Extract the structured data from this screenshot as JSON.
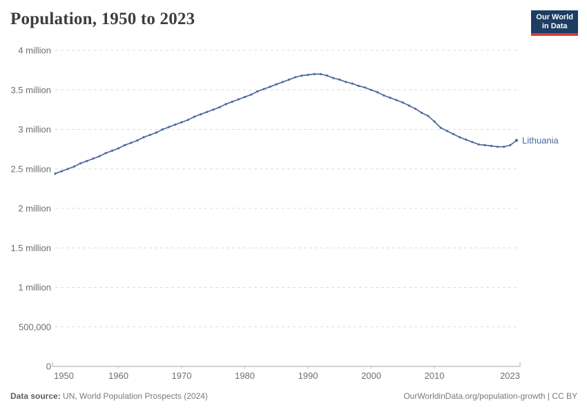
{
  "header": {
    "title": "Population, 1950 to 2023"
  },
  "logo": {
    "line1": "Our World",
    "line2": "in Data",
    "bg_color": "#1d3d63",
    "accent_color": "#d93a3c"
  },
  "footer": {
    "source_label": "Data source:",
    "source_value": "UN, World Population Prospects (2024)",
    "credit": "OurWorldinData.org/population-growth | CC BY"
  },
  "chart_data": {
    "type": "line",
    "title": "Population, 1950 to 2023",
    "xlabel": "",
    "ylabel": "",
    "grid": "dashed-horizontal",
    "legend": "end-of-line-label",
    "xlim": [
      1950,
      2023
    ],
    "ylim": [
      0,
      4000000
    ],
    "xticks": [
      {
        "value": 1950,
        "label": "1950"
      },
      {
        "value": 1960,
        "label": "1960"
      },
      {
        "value": 1970,
        "label": "1970"
      },
      {
        "value": 1980,
        "label": "1980"
      },
      {
        "value": 1990,
        "label": "1990"
      },
      {
        "value": 2000,
        "label": "2000"
      },
      {
        "value": 2010,
        "label": "2010"
      },
      {
        "value": 2023,
        "label": "2023"
      }
    ],
    "yticks": [
      {
        "value": 0,
        "label": "0"
      },
      {
        "value": 500000,
        "label": "500,000"
      },
      {
        "value": 1000000,
        "label": "1 million"
      },
      {
        "value": 1500000,
        "label": "1.5 million"
      },
      {
        "value": 2000000,
        "label": "2 million"
      },
      {
        "value": 2500000,
        "label": "2.5 million"
      },
      {
        "value": 3000000,
        "label": "3 million"
      },
      {
        "value": 3500000,
        "label": "3.5 million"
      },
      {
        "value": 4000000,
        "label": "4 million"
      }
    ],
    "x": [
      1950,
      1951,
      1952,
      1953,
      1954,
      1955,
      1956,
      1957,
      1958,
      1959,
      1960,
      1961,
      1962,
      1963,
      1964,
      1965,
      1966,
      1967,
      1968,
      1969,
      1970,
      1971,
      1972,
      1973,
      1974,
      1975,
      1976,
      1977,
      1978,
      1979,
      1980,
      1981,
      1982,
      1983,
      1984,
      1985,
      1986,
      1987,
      1988,
      1989,
      1990,
      1991,
      1992,
      1993,
      1994,
      1995,
      1996,
      1997,
      1998,
      1999,
      2000,
      2001,
      2002,
      2003,
      2004,
      2005,
      2006,
      2007,
      2008,
      2009,
      2010,
      2011,
      2012,
      2013,
      2014,
      2015,
      2016,
      2017,
      2018,
      2019,
      2020,
      2021,
      2022,
      2023
    ],
    "series": [
      {
        "name": "Lithuania",
        "color": "#4c6a9c",
        "values": [
          2440000,
          2470000,
          2500000,
          2530000,
          2570000,
          2600000,
          2630000,
          2660000,
          2700000,
          2730000,
          2760000,
          2800000,
          2830000,
          2860000,
          2900000,
          2930000,
          2960000,
          3000000,
          3030000,
          3060000,
          3090000,
          3120000,
          3160000,
          3190000,
          3220000,
          3250000,
          3280000,
          3320000,
          3350000,
          3380000,
          3410000,
          3440000,
          3480000,
          3510000,
          3540000,
          3570000,
          3600000,
          3630000,
          3660000,
          3680000,
          3690000,
          3700000,
          3700000,
          3680000,
          3650000,
          3630000,
          3600000,
          3580000,
          3550000,
          3530000,
          3500000,
          3470000,
          3430000,
          3400000,
          3370000,
          3340000,
          3300000,
          3260000,
          3210000,
          3170000,
          3100000,
          3020000,
          2980000,
          2940000,
          2900000,
          2870000,
          2840000,
          2810000,
          2800000,
          2790000,
          2780000,
          2780000,
          2800000,
          2860000
        ]
      }
    ]
  }
}
